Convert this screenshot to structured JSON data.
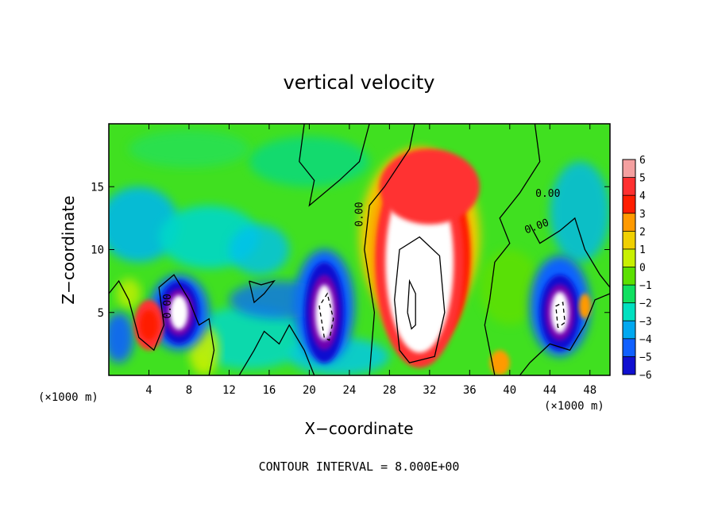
{
  "chart_data": {
    "type": "heatmap",
    "title": "vertical velocity",
    "xlabel": "X−coordinate",
    "ylabel": "Z−coordinate",
    "x_unit_label_left": "(×1000 m)",
    "x_unit_label_right": "(×1000 m)",
    "xlim": [
      0,
      50
    ],
    "ylim": [
      0,
      20
    ],
    "x_ticks": [
      4,
      8,
      12,
      16,
      20,
      24,
      28,
      32,
      36,
      40,
      44,
      48
    ],
    "x_tick_labels": [
      "4",
      "8",
      "12",
      "16",
      "20",
      "24",
      "28",
      "32",
      "36",
      "40",
      "44",
      "48"
    ],
    "y_ticks": [
      5,
      10,
      15
    ],
    "y_tick_labels": [
      "5",
      "10",
      "15"
    ],
    "colorbar": {
      "levels": [
        6,
        5,
        4,
        3,
        2,
        1,
        0,
        -1,
        -2,
        -3,
        -4,
        -5,
        -6
      ],
      "labels": [
        "6",
        "5",
        "4",
        "3",
        "2",
        "1",
        "0",
        "−1",
        "−2",
        "−3",
        "−4",
        "−5",
        "−6"
      ],
      "colors": [
        "#f4a0a0",
        "#ff3030",
        "#ff1e00",
        "#ff9a00",
        "#f0d000",
        "#c8f000",
        "#5ce000",
        "#10e060",
        "#00e0c0",
        "#00a8f0",
        "#1060ff",
        "#1010d0",
        "#7000b0"
      ]
    },
    "contour_labels": [
      "0.00",
      "0.00",
      "0.00",
      "0.00"
    ],
    "footer": "CONTOUR INTERVAL = 8.000E+00",
    "field_features": [
      {
        "name": "updraft-core",
        "x": 31,
        "z": 9,
        "rx": 4,
        "rz": 8,
        "value": 10
      },
      {
        "name": "upper-updraft",
        "x": 32,
        "z": 15,
        "rx": 5,
        "rz": 3,
        "value": 4
      },
      {
        "name": "downdraft-left",
        "x": 7,
        "z": 5,
        "rx": 2,
        "rz": 2.5,
        "value": -7
      },
      {
        "name": "downdraft-mid",
        "x": 21.5,
        "z": 5,
        "rx": 2,
        "rz": 4,
        "value": -7
      },
      {
        "name": "downdraft-right",
        "x": 45,
        "z": 5,
        "rx": 2,
        "rz": 3,
        "value": -7
      },
      {
        "name": "updraft-left",
        "x": 4,
        "z": 4,
        "rx": 1.5,
        "rz": 2,
        "value": 4
      }
    ]
  }
}
